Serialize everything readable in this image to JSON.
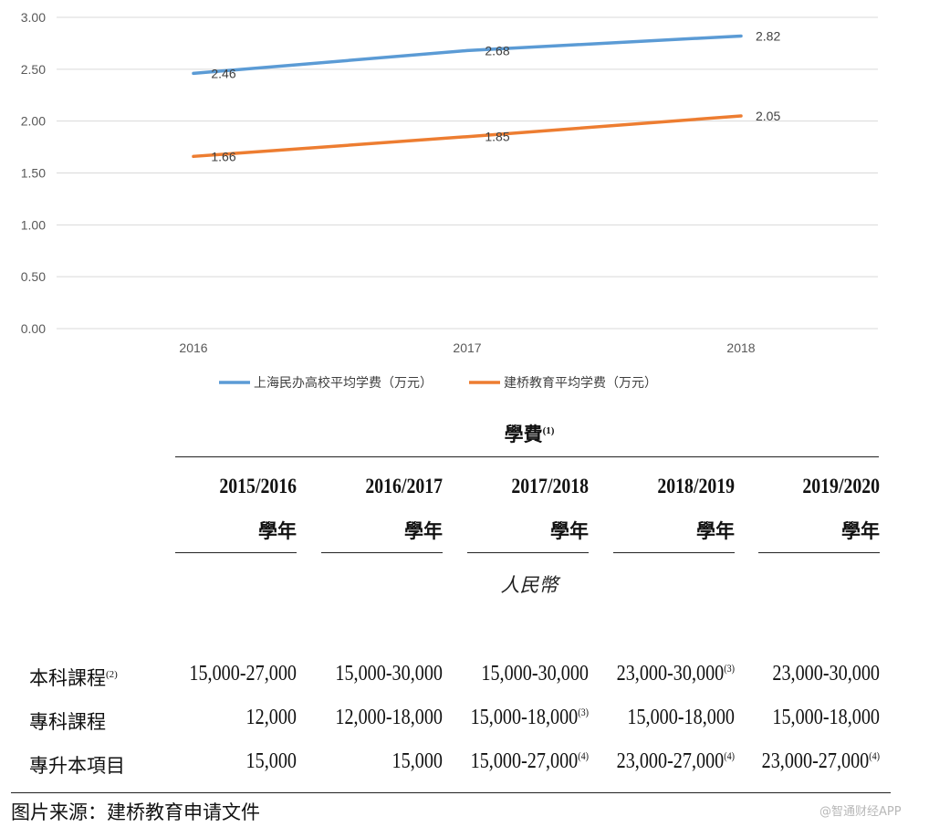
{
  "chart_data": {
    "type": "line",
    "title": "",
    "xlabel": "",
    "ylabel": "",
    "categories": [
      "2016",
      "2017",
      "2018"
    ],
    "ylim": [
      0,
      3
    ],
    "yticks": [
      "0.00",
      "0.50",
      "1.00",
      "1.50",
      "2.00",
      "2.50",
      "3.00"
    ],
    "grid": true,
    "legend_position": "bottom",
    "series": [
      {
        "name": "上海民办高校平均学费（万元）",
        "color": "#5b9bd5",
        "values": [
          2.46,
          2.68,
          2.82
        ],
        "labels": [
          "2.46",
          "2.68",
          "2.82"
        ]
      },
      {
        "name": "建桥教育平均学费（万元）",
        "color": "#ed7d31",
        "values": [
          1.66,
          1.85,
          2.05
        ],
        "labels": [
          "1.66",
          "1.85",
          "2.05"
        ]
      }
    ]
  },
  "table": {
    "title": "學費",
    "title_note": "(1)",
    "year_header_suffix": "學年",
    "years": [
      "2015/2016",
      "2016/2017",
      "2017/2018",
      "2018/2019",
      "2019/2020"
    ],
    "currency": "人民幣",
    "rows": [
      {
        "label": "本科課程",
        "note": "(2)",
        "cells": [
          {
            "value": "15,000-27,000",
            "note": ""
          },
          {
            "value": "15,000-30,000",
            "note": ""
          },
          {
            "value": "15,000-30,000",
            "note": ""
          },
          {
            "value": "23,000-30,000",
            "note": "(3)"
          },
          {
            "value": "23,000-30,000",
            "note": ""
          }
        ]
      },
      {
        "label": "專科課程",
        "note": "",
        "cells": [
          {
            "value": "12,000",
            "note": ""
          },
          {
            "value": "12,000-18,000",
            "note": ""
          },
          {
            "value": "15,000-18,000",
            "note": "(3)"
          },
          {
            "value": "15,000-18,000",
            "note": ""
          },
          {
            "value": "15,000-18,000",
            "note": ""
          }
        ]
      },
      {
        "label": "專升本項目",
        "note": "",
        "cells": [
          {
            "value": "15,000",
            "note": ""
          },
          {
            "value": "15,000",
            "note": ""
          },
          {
            "value": "15,000-27,000",
            "note": "(4)"
          },
          {
            "value": "23,000-27,000",
            "note": "(4)"
          },
          {
            "value": "23,000-27,000",
            "note": "(4)"
          }
        ]
      }
    ]
  },
  "footer": {
    "source": "图片来源：建桥教育申请文件",
    "watermark": "@智通财经APP"
  }
}
